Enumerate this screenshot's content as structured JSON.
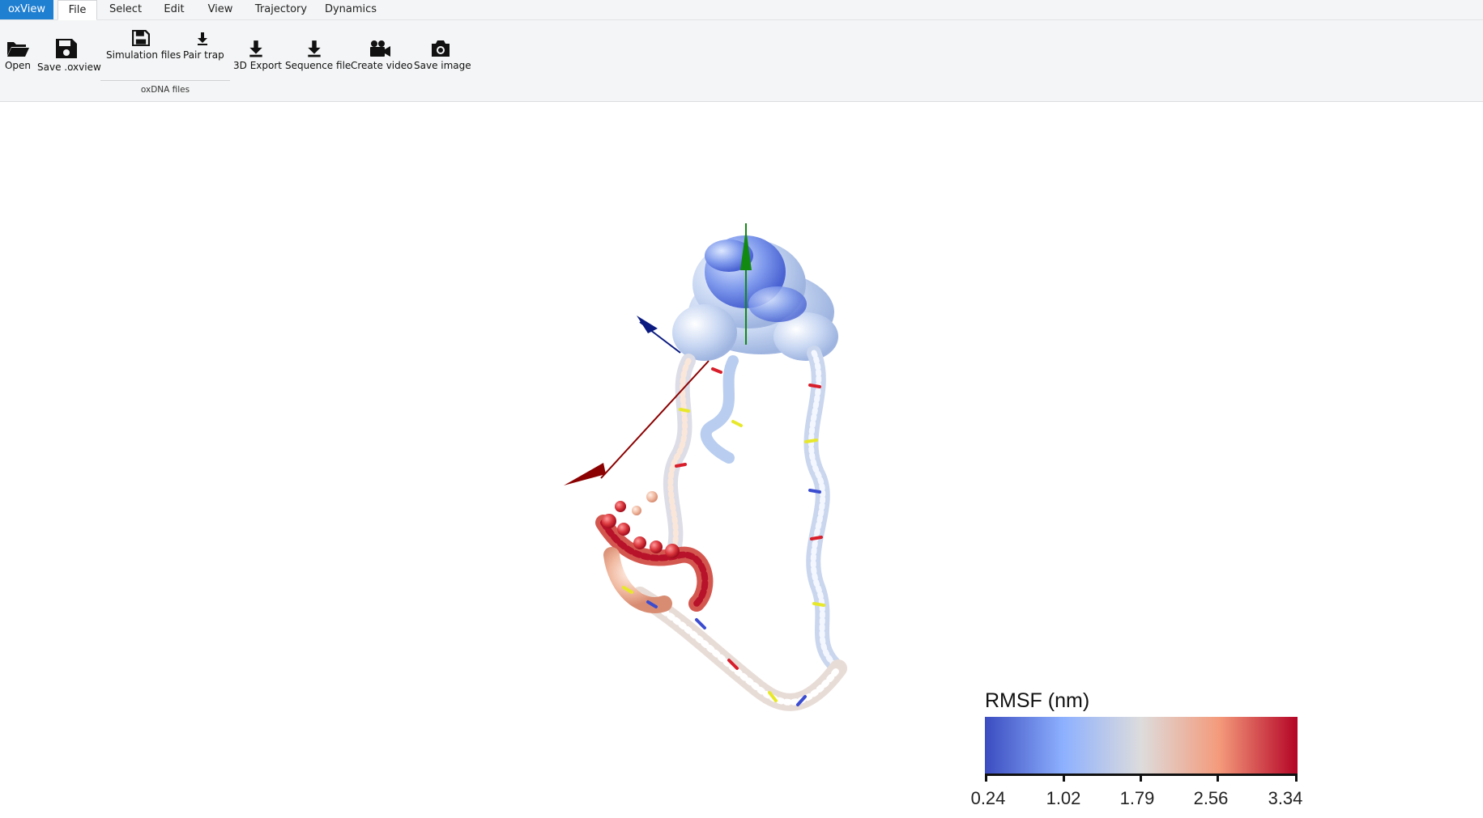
{
  "menubar": {
    "tabs": [
      {
        "label": "oxView"
      },
      {
        "label": "File"
      },
      {
        "label": "Select"
      },
      {
        "label": "Edit"
      },
      {
        "label": "View"
      },
      {
        "label": "Trajectory"
      },
      {
        "label": "Dynamics"
      }
    ]
  },
  "ribbon": {
    "open": "Open",
    "save_oxview": "Save .oxview",
    "simulation_files": "Simulation files",
    "pair_trap": "Pair trap",
    "group_label": "oxDNA files",
    "export_3d": "3D Export",
    "sequence_file": "Sequence file",
    "create_video": "Create video",
    "save_image": "Save image"
  },
  "colorbar": {
    "title": "RMSF (nm)",
    "ticks": [
      "0.24",
      "1.02",
      "1.79",
      "2.56",
      "3.34"
    ],
    "colors": [
      "#3b4cc0",
      "#8db0fe",
      "#dddcdc",
      "#f49a7b",
      "#b40426"
    ]
  },
  "axes": {
    "x_color": "#8b0000",
    "y_color": "#128a12",
    "z_color": "#0a1a80"
  }
}
